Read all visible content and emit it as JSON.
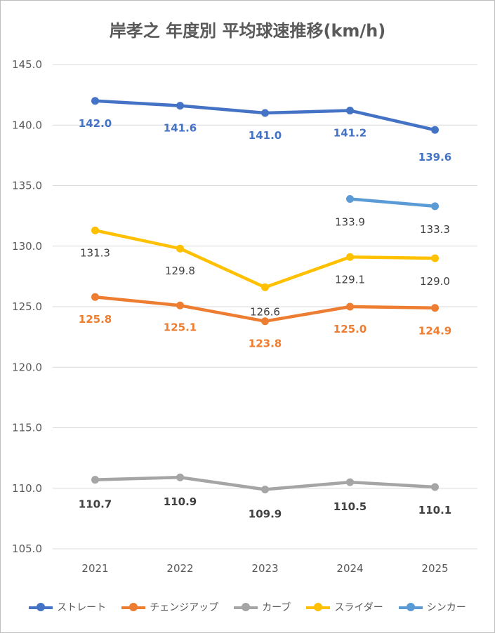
{
  "chart_data": {
    "type": "line",
    "title": "岸孝之 年度別 平均球速推移(km/h)",
    "categories": [
      "2021",
      "2022",
      "2023",
      "2024",
      "2025"
    ],
    "ylim": [
      105,
      145
    ],
    "yticks": [
      "105.0",
      "110.0",
      "115.0",
      "120.0",
      "125.0",
      "130.0",
      "135.0",
      "140.0",
      "145.0"
    ],
    "grid": true,
    "legend_position": "bottom",
    "series": [
      {
        "name": "ストレート",
        "color": "#4472c4",
        "labelColor": "#4472c4",
        "labelBold": true,
        "values": [
          142.0,
          141.6,
          141.0,
          141.2,
          139.6
        ],
        "labels": [
          "142.0",
          "141.6",
          "141.0",
          "141.2",
          "139.6"
        ]
      },
      {
        "name": "チェンジアップ",
        "color": "#ed7d31",
        "labelColor": "#ed7d31",
        "labelBold": true,
        "values": [
          125.8,
          125.1,
          123.8,
          125.0,
          124.9
        ],
        "labels": [
          "125.8",
          "125.1",
          "123.8",
          "125.0",
          "124.9"
        ]
      },
      {
        "name": "カーブ",
        "color": "#a5a5a5",
        "labelColor": "#404040",
        "labelBold": true,
        "values": [
          110.7,
          110.9,
          109.9,
          110.5,
          110.1
        ],
        "labels": [
          "110.7",
          "110.9",
          "109.9",
          "110.5",
          "110.1"
        ]
      },
      {
        "name": "スライダー",
        "color": "#ffc000",
        "labelColor": "#404040",
        "labelBold": false,
        "values": [
          131.3,
          129.8,
          126.6,
          129.1,
          129.0
        ],
        "labels": [
          "131.3",
          "129.8",
          "126.6",
          "129.1",
          "129.0"
        ]
      },
      {
        "name": "シンカー",
        "color": "#5b9bd5",
        "labelColor": "#404040",
        "labelBold": false,
        "values": [
          null,
          null,
          null,
          133.9,
          133.3
        ],
        "labels": [
          "",
          "",
          "",
          "133.9",
          "133.3"
        ]
      }
    ]
  }
}
